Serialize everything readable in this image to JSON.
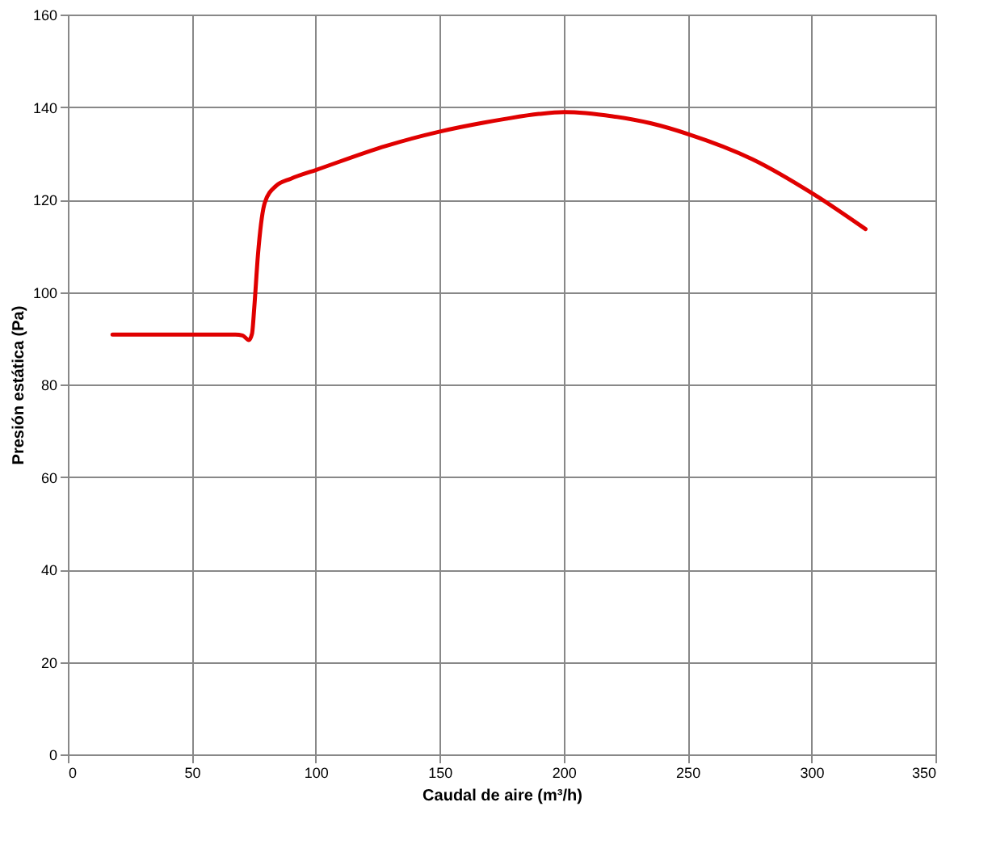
{
  "chart_data": {
    "type": "line",
    "xlabel": "Caudal de aire (m³/h)",
    "ylabel": "Presión estática (Pa)",
    "series": [
      {
        "color": "#e00000",
        "x": [
          18,
          40,
          67.6,
          70.5,
          73,
          74.3,
          75.2,
          76.7,
          79.5,
          83.9,
          90,
          100.2,
          128.4,
          150.1,
          167.5,
          176.2,
          190,
          200.3,
          219.7,
          235,
          250.5,
          276.2,
          300.7,
          321.8
        ],
        "values": [
          90.8,
          90.8,
          90.8,
          90.6,
          89.6,
          91,
          96.6,
          108.1,
          119.4,
          122.9,
          124.5,
          126.4,
          131.6,
          134.7,
          136.6,
          137.4,
          138.5,
          138.9,
          138.0,
          136.5,
          134.1,
          128.7,
          121.2,
          113.6
        ]
      }
    ],
    "xlim": [
      0,
      350
    ],
    "xticks": [
      0,
      50,
      100,
      150,
      200,
      250,
      300,
      350
    ],
    "ylim": [
      0,
      160
    ],
    "yticks": [
      0,
      20,
      40,
      60,
      80,
      100,
      120,
      140,
      160
    ],
    "grid": true,
    "legend": false,
    "marker": "none",
    "line_style": "solid"
  }
}
